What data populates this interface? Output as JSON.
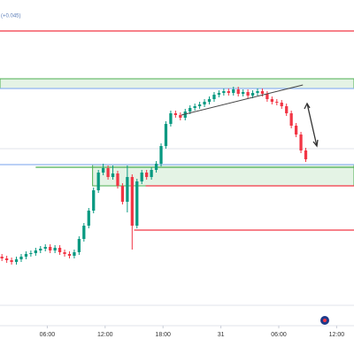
{
  "chart_data": {
    "type": "candlestick",
    "label": "(+0.045)",
    "up_color": "#089981",
    "down_color": "#f23645",
    "xlim": [
      1.1,
      37.8
    ],
    "ylim": [
      0,
      36.5
    ],
    "xticks": [
      {
        "value": 6,
        "label": "06:00"
      },
      {
        "value": 12,
        "label": "12:00"
      },
      {
        "value": 18,
        "label": "18:00"
      },
      {
        "value": 24,
        "label": "31"
      },
      {
        "value": 30,
        "label": "06:00"
      },
      {
        "value": 36,
        "label": "12:00"
      }
    ],
    "x": [
      1.3,
      1.8,
      2.3,
      2.8,
      3.3,
      3.8,
      4.3,
      4.8,
      5.3,
      5.8,
      6.3,
      6.8,
      7.3,
      7.8,
      8.3,
      8.8,
      9.3,
      9.8,
      10.3,
      10.8,
      11.3,
      11.8,
      12.3,
      12.8,
      13.3,
      13.8,
      14.3,
      14.8,
      15.3,
      15.8,
      16.3,
      16.8,
      17.3,
      17.8,
      18.3,
      18.8,
      19.3,
      19.8,
      20.3,
      20.8,
      21.3,
      21.8,
      22.3,
      22.8,
      23.3,
      23.8,
      24.3,
      24.8,
      25.3,
      25.8,
      26.3,
      26.8,
      27.3,
      27.8,
      28.3,
      28.8,
      29.3,
      29.8,
      30.3,
      30.8,
      31.3,
      31.8,
      32.3,
      32.8
    ],
    "open": [
      7.5,
      7.3,
      7.1,
      6.9,
      7.2,
      7.5,
      7.8,
      7.9,
      8.2,
      8.4,
      8.6,
      8.2,
      8.5,
      8.0,
      7.8,
      7.6,
      8.0,
      9.5,
      11.0,
      12.7,
      15.0,
      17.0,
      17.5,
      16.5,
      16.9,
      15.5,
      13.7,
      16.5,
      11.0,
      16.0,
      17.0,
      16.5,
      17.3,
      18.0,
      20.0,
      22.5,
      23.7,
      23.5,
      23.2,
      23.9,
      24.3,
      24.5,
      24.7,
      25.0,
      25.3,
      25.8,
      26.0,
      26.2,
      26.0,
      26.4,
      25.9,
      26.1,
      25.7,
      26.0,
      26.2,
      25.9,
      25.3,
      25.0,
      24.9,
      24.5,
      23.7,
      22.3,
      21.3,
      19.5
    ],
    "high": [
      7.8,
      7.6,
      7.4,
      7.5,
      7.8,
      8.1,
      8.2,
      8.5,
      8.7,
      8.9,
      8.9,
      8.8,
      8.8,
      8.3,
      8.1,
      8.3,
      9.8,
      11.3,
      13.0,
      15.3,
      17.3,
      18.0,
      17.8,
      17.8,
      17.2,
      15.8,
      17.8,
      16.8,
      16.3,
      17.3,
      17.3,
      17.6,
      18.3,
      20.3,
      22.8,
      24.0,
      24.0,
      23.8,
      24.2,
      24.6,
      24.8,
      25.0,
      25.3,
      25.6,
      26.1,
      26.3,
      26.5,
      26.5,
      26.7,
      26.7,
      26.4,
      26.4,
      26.3,
      26.5,
      26.5,
      26.2,
      25.6,
      25.3,
      25.2,
      24.8,
      24.0,
      22.6,
      21.6,
      19.8
    ],
    "low": [
      7.0,
      6.8,
      6.6,
      6.6,
      6.9,
      7.2,
      7.5,
      7.6,
      7.9,
      8.1,
      7.9,
      7.9,
      7.7,
      7.5,
      7.3,
      7.3,
      7.7,
      9.2,
      10.7,
      12.4,
      14.7,
      16.7,
      16.2,
      16.2,
      15.2,
      13.4,
      12.5,
      8.3,
      10.7,
      15.7,
      16.2,
      16.2,
      17.0,
      17.7,
      19.7,
      22.2,
      23.2,
      22.9,
      22.9,
      23.6,
      24.0,
      24.2,
      24.4,
      24.7,
      25.0,
      25.5,
      25.7,
      25.7,
      25.7,
      25.6,
      25.6,
      25.4,
      25.4,
      25.7,
      25.6,
      25.0,
      24.7,
      24.6,
      24.2,
      23.4,
      22.0,
      21.0,
      19.2,
      18.2
    ],
    "close": [
      7.3,
      7.1,
      6.9,
      7.2,
      7.5,
      7.8,
      7.9,
      8.2,
      8.4,
      8.6,
      8.2,
      8.5,
      8.0,
      7.8,
      7.6,
      8.0,
      9.5,
      11.0,
      12.7,
      15.0,
      17.0,
      17.5,
      16.5,
      16.9,
      15.5,
      13.7,
      16.5,
      11.0,
      16.0,
      17.0,
      16.5,
      17.3,
      18.0,
      20.0,
      22.5,
      23.7,
      23.5,
      23.2,
      23.9,
      24.3,
      24.5,
      24.7,
      25.0,
      25.3,
      25.8,
      26.0,
      26.2,
      26.0,
      26.4,
      25.9,
      26.1,
      25.7,
      26.0,
      26.2,
      25.9,
      25.3,
      25.0,
      24.9,
      24.5,
      23.7,
      22.3,
      21.3,
      19.5,
      18.5
    ],
    "zones": [
      {
        "from": 26.5,
        "to": 27.6,
        "start": 1.1,
        "color": "#4caf50"
      },
      {
        "from": 15.5,
        "to": 17.9,
        "start": 10.7,
        "color": "#4caf50"
      }
    ],
    "levels": [
      {
        "value": 33.0,
        "start": 1.1,
        "color": "#f23645"
      },
      {
        "value": 26.5,
        "start": 1.1,
        "color": "#90b4f0"
      },
      {
        "value": 17.9,
        "start": 1.1,
        "color": "#90b4f0"
      },
      {
        "value": 17.6,
        "start": 4.8,
        "color": "#4caf50"
      },
      {
        "value": 15.5,
        "start": 16.2,
        "color": "#f23645"
      },
      {
        "value": 10.5,
        "start": 15.0,
        "color": "#f23645"
      }
    ],
    "trendline": {
      "x": [
        19.9,
        32.5
      ],
      "y": [
        23.5,
        26.9
      ],
      "color": "#444444"
    }
  }
}
